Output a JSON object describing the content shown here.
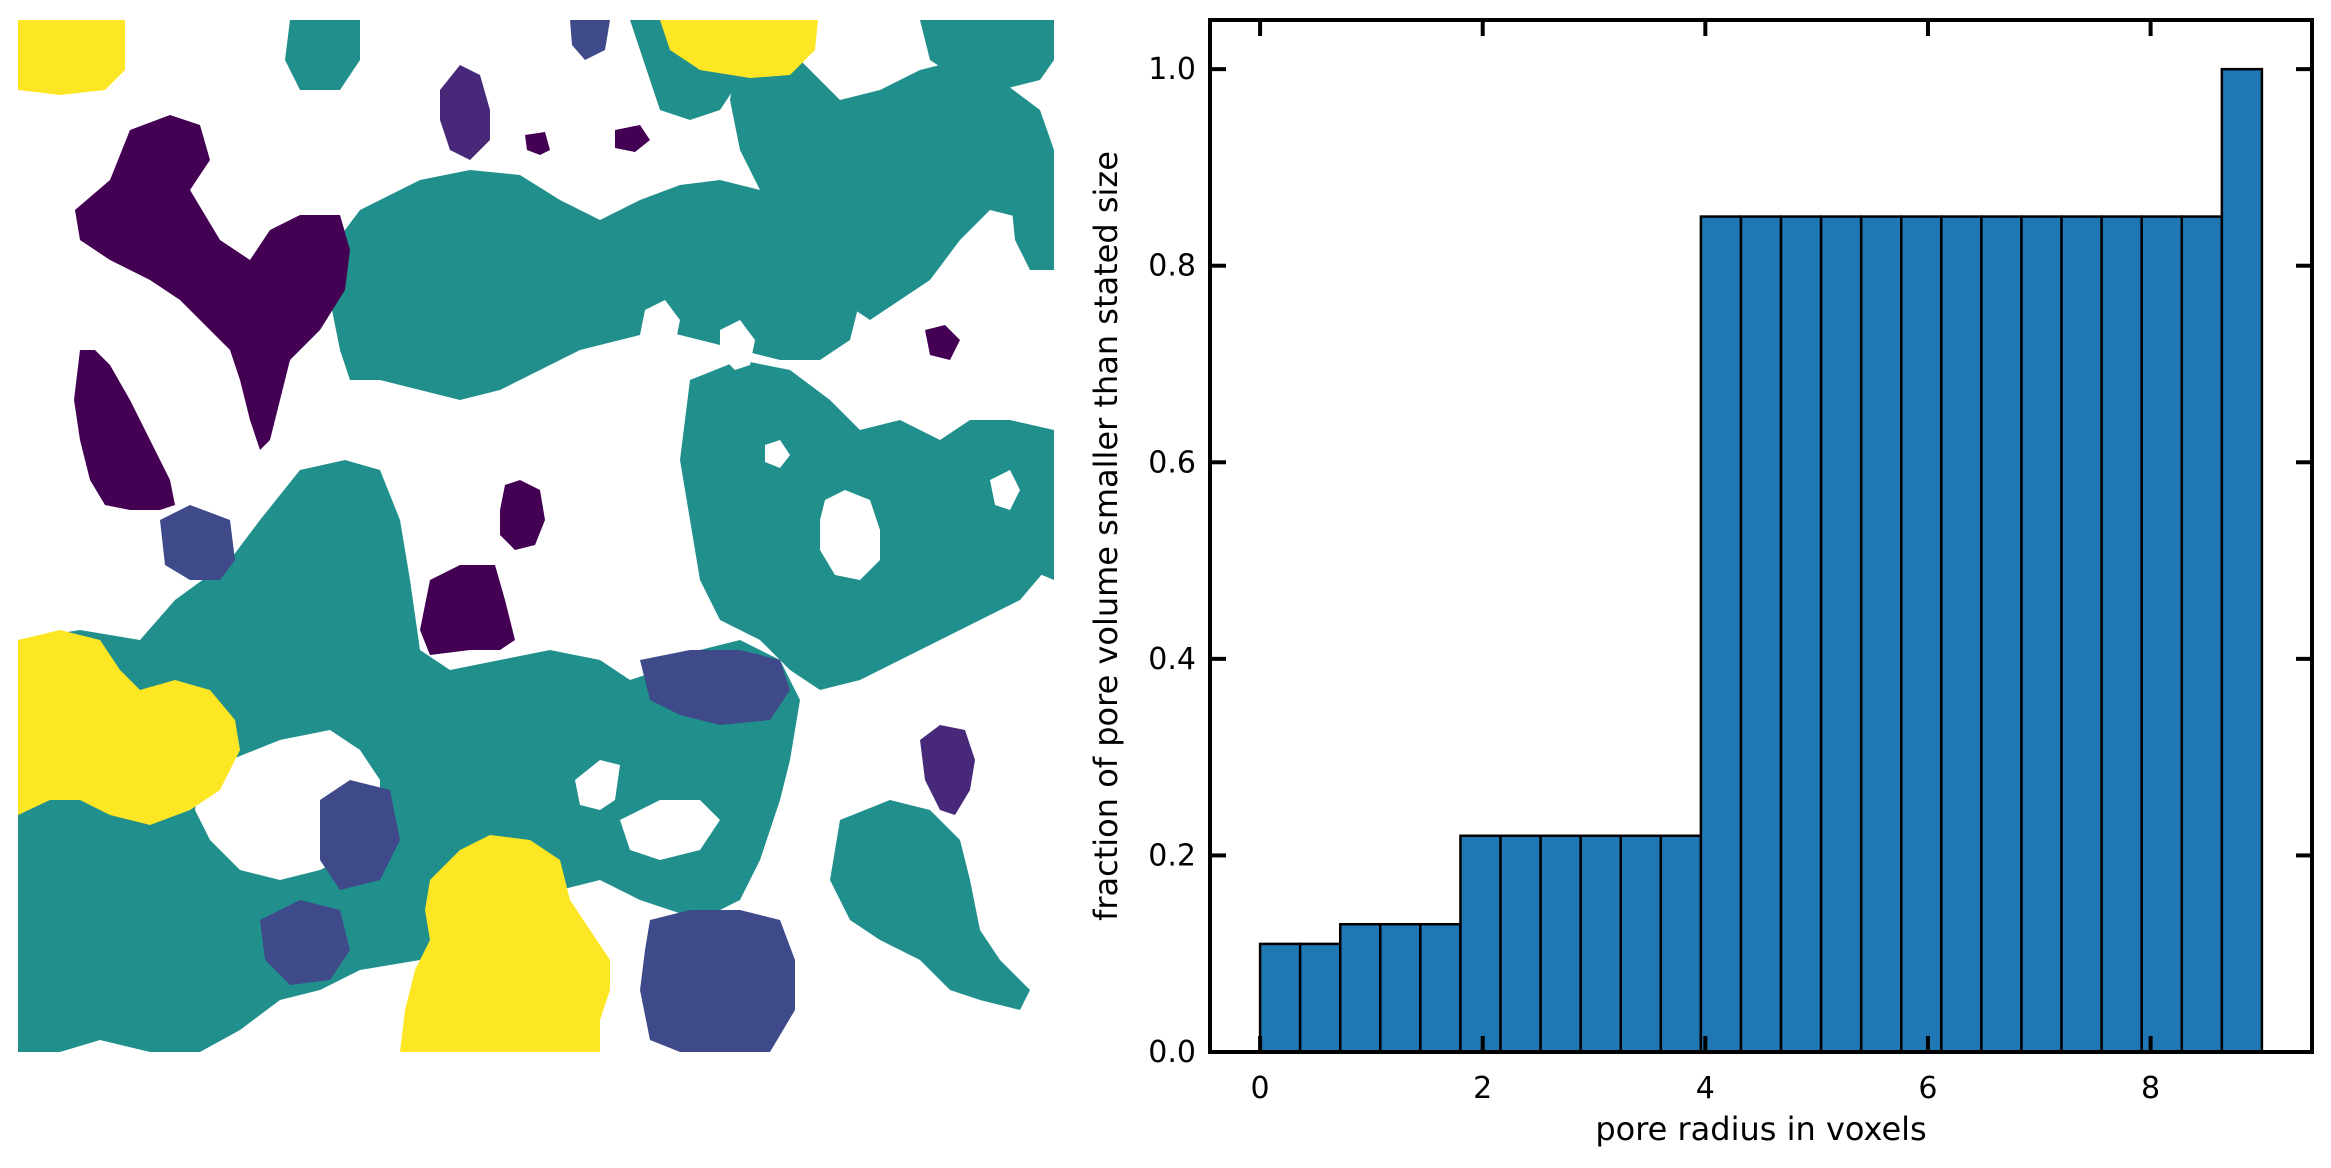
{
  "chart_data": [
    {
      "type": "heatmap",
      "description_visible": "pore size map image (categorical coloring)",
      "colormap": [
        "#440154",
        "#482878",
        "#3e4a89",
        "#21908c",
        "#fde725"
      ],
      "background": "#ffffff",
      "axes_visible": false
    },
    {
      "type": "bar",
      "title": "",
      "xlabel": "pore radius in voxels",
      "ylabel": "fraction of pore volume smaller than stated size",
      "xlim": [
        -0.45,
        9.45
      ],
      "ylim": [
        0.0,
        1.05
      ],
      "bin_width": 0.36,
      "x": [
        0.18,
        0.54,
        0.9,
        1.26,
        1.62,
        1.98,
        2.34,
        2.7,
        3.06,
        3.42,
        3.78,
        4.14,
        4.5,
        4.86,
        5.22,
        5.58,
        5.94,
        6.3,
        6.66,
        7.02,
        7.38,
        7.74,
        8.1,
        8.46,
        8.82
      ],
      "values": [
        0.11,
        0.11,
        0.13,
        0.13,
        0.13,
        0.22,
        0.22,
        0.22,
        0.22,
        0.22,
        0.22,
        0.85,
        0.85,
        0.85,
        0.85,
        0.85,
        0.85,
        0.85,
        0.85,
        0.85,
        0.85,
        0.85,
        0.85,
        0.85,
        1.0
      ],
      "x_ticks": [
        0,
        2,
        4,
        6,
        8
      ],
      "x_tick_labels": [
        "0",
        "2",
        "4",
        "6",
        "8"
      ],
      "y_ticks": [
        0.0,
        0.2,
        0.4,
        0.6,
        0.8,
        1.0
      ],
      "y_tick_labels": [
        "0.0",
        "0.2",
        "0.4",
        "0.6",
        "0.8",
        "1.0"
      ],
      "bar_color": "#1f77b4",
      "edge_color": "#000000",
      "grid": false
    }
  ]
}
